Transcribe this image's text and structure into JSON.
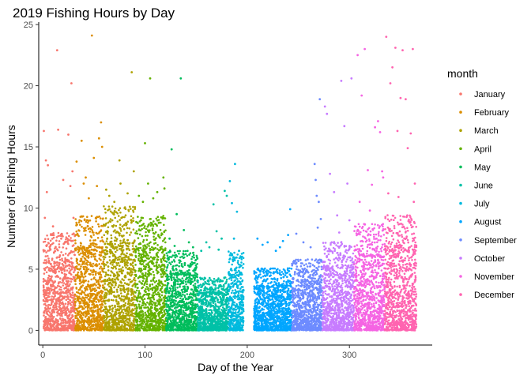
{
  "chart_data": {
    "type": "scatter",
    "title": "2019 Fishing Hours by Day",
    "xlabel": "Day of the Year",
    "ylabel": "Number of Fishing Hours",
    "xlim": [
      -4,
      381
    ],
    "ylim": [
      -1.2,
      25.2
    ],
    "x_ticks": [
      0,
      100,
      200,
      300
    ],
    "y_ticks": [
      0,
      5,
      10,
      15,
      20,
      25
    ],
    "grid": false,
    "legend_title": "month",
    "legend_position": "right",
    "series": [
      {
        "name": "January",
        "color": "#F8766D",
        "day_range": [
          1,
          31
        ],
        "dense_max": 5.5,
        "points": [
          [
            1,
            16.3
          ],
          [
            2,
            9.2
          ],
          [
            3,
            13.9
          ],
          [
            4,
            11.3
          ],
          [
            5,
            13.5
          ],
          [
            10,
            8.5
          ],
          [
            14,
            22.9
          ],
          [
            15,
            16.4
          ],
          [
            20,
            12.3
          ],
          [
            25,
            16.0
          ],
          [
            27,
            11.8
          ],
          [
            28,
            20.2
          ],
          [
            29,
            13.0
          ],
          [
            30,
            9.2
          ],
          [
            8,
            7.8
          ],
          [
            18,
            7.5
          ],
          [
            22,
            7.2
          ]
        ]
      },
      {
        "name": "February",
        "color": "#DB8E00",
        "day_range": [
          32,
          59
        ],
        "dense_max": 6.5,
        "points": [
          [
            33,
            13.8
          ],
          [
            38,
            15.5
          ],
          [
            40,
            12.0
          ],
          [
            42,
            12.5
          ],
          [
            45,
            10.8
          ],
          [
            48,
            24.1
          ],
          [
            50,
            14.1
          ],
          [
            53,
            11.8
          ],
          [
            55,
            15.7
          ],
          [
            57,
            17.0
          ],
          [
            58,
            15.0
          ],
          [
            36,
            9.0
          ],
          [
            44,
            8.5
          ],
          [
            52,
            9.2
          ]
        ]
      },
      {
        "name": "March",
        "color": "#AEA200",
        "day_range": [
          60,
          90
        ],
        "dense_max": 7.0,
        "points": [
          [
            62,
            11.5
          ],
          [
            65,
            11.0
          ],
          [
            70,
            10.5
          ],
          [
            75,
            13.9
          ],
          [
            76,
            12.0
          ],
          [
            80,
            10.0
          ],
          [
            83,
            11.2
          ],
          [
            87,
            21.1
          ],
          [
            89,
            13.0
          ],
          [
            68,
            9.0
          ],
          [
            78,
            8.5
          ]
        ]
      },
      {
        "name": "April",
        "color": "#64B200",
        "day_range": [
          91,
          120
        ],
        "dense_max": 6.5,
        "points": [
          [
            94,
            11.0
          ],
          [
            98,
            10.5
          ],
          [
            100,
            15.3
          ],
          [
            103,
            12.0
          ],
          [
            105,
            20.6
          ],
          [
            108,
            10.8
          ],
          [
            112,
            11.3
          ],
          [
            118,
            12.5
          ],
          [
            119,
            11.6
          ],
          [
            96,
            9.0
          ],
          [
            110,
            8.7
          ]
        ]
      },
      {
        "name": "May",
        "color": "#00BD5C",
        "day_range": [
          121,
          151
        ],
        "dense_max": 4.5,
        "points": [
          [
            126,
            14.8
          ],
          [
            131,
            9.5
          ],
          [
            135,
            20.6
          ],
          [
            138,
            8.2
          ],
          [
            143,
            7.2
          ],
          [
            147,
            6.8
          ],
          [
            124,
            7.5
          ],
          [
            129,
            6.9
          ]
        ]
      },
      {
        "name": "June",
        "color": "#00C1A7",
        "day_range": [
          152,
          181
        ],
        "dense_max": 3.0,
        "points": [
          [
            155,
            6.5
          ],
          [
            160,
            7.2
          ],
          [
            167,
            10.3
          ],
          [
            170,
            8.1
          ],
          [
            175,
            7.5
          ],
          [
            178,
            11.4
          ],
          [
            180,
            11.0
          ],
          [
            163,
            6.8
          ],
          [
            172,
            6.6
          ]
        ]
      },
      {
        "name": "July",
        "color": "#00BADE",
        "day_range": [
          182,
          196
        ],
        "dense_max": 4.5,
        "points": [
          [
            183,
            12.2
          ],
          [
            185,
            10.4
          ],
          [
            188,
            13.6
          ],
          [
            190,
            9.7
          ],
          [
            187,
            7.5
          ],
          [
            192,
            6.5
          ]
        ]
      },
      {
        "name": "August",
        "color": "#00A6FF",
        "day_range": [
          207,
          243
        ],
        "dense_max": 3.5,
        "points": [
          [
            210,
            7.5
          ],
          [
            215,
            7.0
          ],
          [
            220,
            7.2
          ],
          [
            228,
            6.5
          ],
          [
            235,
            7.3
          ],
          [
            240,
            7.8
          ],
          [
            242,
            9.9
          ],
          [
            232,
            6.8
          ]
        ]
      },
      {
        "name": "September",
        "color": "#6D8BFF",
        "day_range": [
          244,
          273
        ],
        "dense_max": 4.0,
        "points": [
          [
            248,
            7.9
          ],
          [
            255,
            7.2
          ],
          [
            262,
            6.8
          ],
          [
            266,
            13.6
          ],
          [
            267,
            12.3
          ],
          [
            268,
            11.0
          ],
          [
            270,
            10.5
          ],
          [
            272,
            9.1
          ],
          [
            271,
            18.9
          ],
          [
            269,
            8.4
          ]
        ]
      },
      {
        "name": "October",
        "color": "#C77CFF",
        "day_range": [
          274,
          304
        ],
        "dense_max": 5.0,
        "points": [
          [
            276,
            18.3
          ],
          [
            278,
            17.7
          ],
          [
            281,
            12.8
          ],
          [
            285,
            11.3
          ],
          [
            290,
            8.0
          ],
          [
            292,
            20.4
          ],
          [
            295,
            16.7
          ],
          [
            298,
            12.0
          ],
          [
            302,
            20.6
          ],
          [
            300,
            9.0
          ],
          [
            288,
            9.4
          ]
        ]
      },
      {
        "name": "November",
        "color": "#F564E3",
        "day_range": [
          305,
          334
        ],
        "dense_max": 6.0,
        "points": [
          [
            308,
            22.5
          ],
          [
            312,
            19.2
          ],
          [
            315,
            23.0
          ],
          [
            318,
            13.1
          ],
          [
            322,
            11.9
          ],
          [
            325,
            16.6
          ],
          [
            328,
            17.1
          ],
          [
            330,
            16.2
          ],
          [
            332,
            13.0
          ],
          [
            333,
            12.5
          ],
          [
            310,
            10.5
          ],
          [
            320,
            9.8
          ]
        ]
      },
      {
        "name": "December",
        "color": "#FF64B0",
        "day_range": [
          335,
          365
        ],
        "dense_max": 6.5,
        "points": [
          [
            336,
            24.0
          ],
          [
            340,
            20.2
          ],
          [
            342,
            21.5
          ],
          [
            345,
            23.1
          ],
          [
            347,
            16.3
          ],
          [
            350,
            19.0
          ],
          [
            352,
            22.9
          ],
          [
            355,
            18.9
          ],
          [
            357,
            14.9
          ],
          [
            360,
            16.1
          ],
          [
            362,
            23.0
          ],
          [
            363,
            10.5
          ],
          [
            364,
            12.0
          ],
          [
            338,
            11.2
          ],
          [
            348,
            10.9
          ]
        ]
      }
    ]
  }
}
